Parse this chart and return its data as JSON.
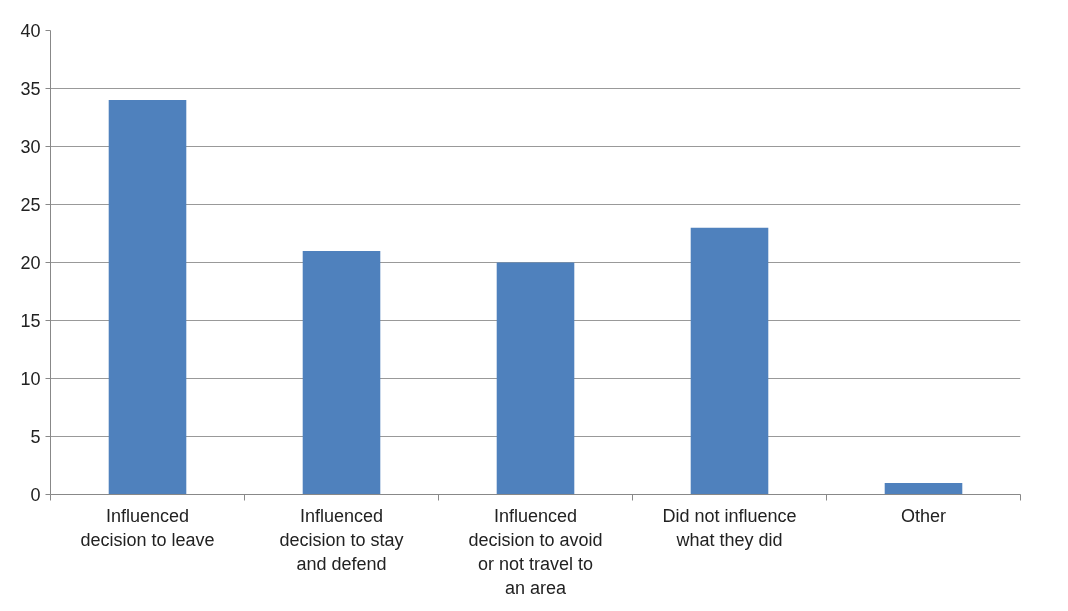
{
  "chart_data": {
    "type": "bar",
    "categories": [
      "Influenced decision to leave",
      "Influenced decision to stay and defend",
      "Influenced decision to avoid or not travel to an area",
      "Did not influence what they did",
      "Other"
    ],
    "values": [
      34,
      21,
      20,
      23,
      1
    ],
    "color": "#4f81bd",
    "ylim": [
      0,
      40
    ],
    "yticks": [
      0,
      5,
      10,
      15,
      20,
      25,
      30,
      35,
      40
    ],
    "grid": "y"
  }
}
